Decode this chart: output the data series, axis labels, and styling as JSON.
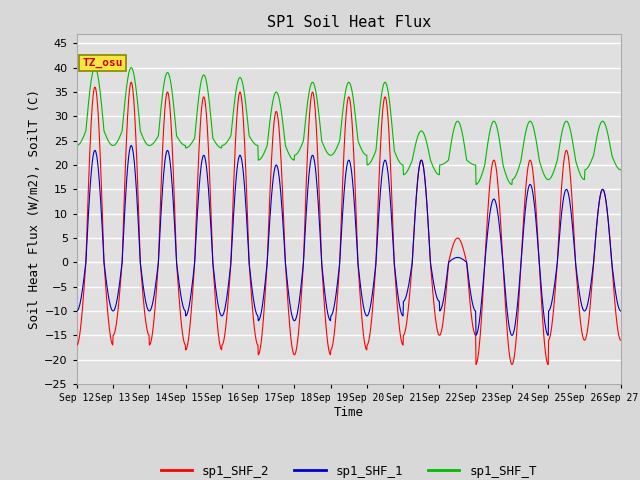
{
  "title": "SP1 Soil Heat Flux",
  "xlabel": "Time",
  "ylabel": "Soil Heat Flux (W/m2), SoilT (C)",
  "ylim": [
    -25,
    47
  ],
  "yticks": [
    -25,
    -20,
    -15,
    -10,
    -5,
    0,
    5,
    10,
    15,
    20,
    25,
    30,
    35,
    40,
    45
  ],
  "bg_color": "#d8d8d8",
  "plot_bg_color": "#e0e0e0",
  "grid_color": "white",
  "tz_label": "TZ_osu",
  "legend": [
    "sp1_SHF_2",
    "sp1_SHF_1",
    "sp1_SHF_T"
  ],
  "legend_colors": [
    "#ff0000",
    "#0000cc",
    "#00bb00"
  ],
  "x_tick_labels": [
    "Sep 12",
    "Sep 13",
    "Sep 14",
    "Sep 15",
    "Sep 16",
    "Sep 17",
    "Sep 18",
    "Sep 19",
    "Sep 20",
    "Sep 21",
    "Sep 22",
    "Sep 23",
    "Sep 24",
    "Sep 25",
    "Sep 26",
    "Sep 27"
  ],
  "n_days": 15,
  "pts_per_day": 96,
  "shf2_pos_amp": [
    36,
    37,
    35,
    34,
    35,
    31,
    35,
    34,
    34,
    21,
    5,
    21,
    21,
    23,
    15
  ],
  "shf2_neg_amp": [
    17,
    15,
    17,
    18,
    17,
    19,
    19,
    18,
    17,
    15,
    15,
    21,
    21,
    16,
    16
  ],
  "shf1_pos_amp": [
    23,
    24,
    23,
    22,
    22,
    20,
    22,
    21,
    21,
    21,
    1,
    13,
    16,
    15,
    15
  ],
  "shf1_neg_amp": [
    10,
    10,
    10,
    11,
    11,
    12,
    12,
    11,
    11,
    8,
    10,
    15,
    15,
    10,
    10
  ],
  "shfT_baseline": [
    27,
    27,
    26,
    25.5,
    26,
    24,
    25,
    25,
    23,
    21,
    21,
    20,
    21,
    21,
    22
  ],
  "shfT_amp": [
    13,
    13,
    13,
    13,
    12,
    11,
    12,
    12,
    14,
    6,
    8,
    9,
    8,
    8,
    7
  ],
  "shfT_min_amp": [
    3,
    3,
    2,
    2,
    2,
    3,
    3,
    3,
    3,
    3,
    1,
    4,
    4,
    4,
    3
  ]
}
